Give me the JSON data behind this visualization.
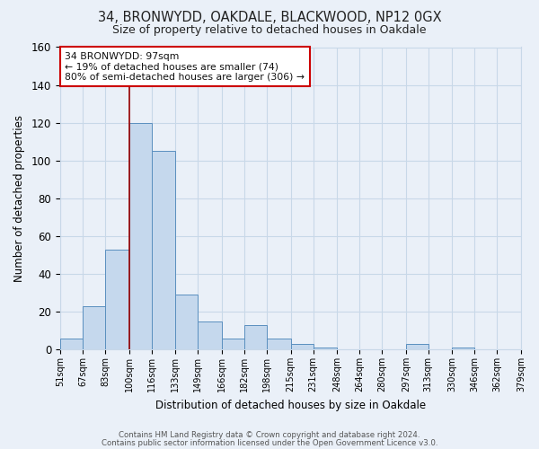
{
  "title": "34, BRONWYDD, OAKDALE, BLACKWOOD, NP12 0GX",
  "subtitle": "Size of property relative to detached houses in Oakdale",
  "xlabel": "Distribution of detached houses by size in Oakdale",
  "ylabel": "Number of detached properties",
  "bar_heights": [
    6,
    23,
    53,
    120,
    105,
    29,
    15,
    6,
    13,
    6,
    3,
    1,
    0,
    0,
    0,
    3,
    0,
    1,
    0,
    0
  ],
  "bar_color": "#c5d8ed",
  "bar_edge_color": "#5a8fbf",
  "vline_color": "#990000",
  "ylim": [
    0,
    160
  ],
  "yticks": [
    0,
    20,
    40,
    60,
    80,
    100,
    120,
    140,
    160
  ],
  "annotation_title": "34 BRONWYDD: 97sqm",
  "annotation_line1": "← 19% of detached houses are smaller (74)",
  "annotation_line2": "80% of semi-detached houses are larger (306) →",
  "annotation_box_color": "#ffffff",
  "annotation_box_edge": "#cc0000",
  "footer1": "Contains HM Land Registry data © Crown copyright and database right 2024.",
  "footer2": "Contains public sector information licensed under the Open Government Licence v3.0.",
  "grid_color": "#c8d8e8",
  "bg_color": "#eaf0f8",
  "bin_edges": [
    51,
    67,
    83,
    100,
    116,
    133,
    149,
    166,
    182,
    198,
    215,
    231,
    248,
    264,
    280,
    297,
    313,
    330,
    346,
    362,
    379
  ],
  "bin_labels": [
    "51sqm",
    "67sqm",
    "83sqm",
    "100sqm",
    "116sqm",
    "133sqm",
    "149sqm",
    "166sqm",
    "182sqm",
    "198sqm",
    "215sqm",
    "231sqm",
    "248sqm",
    "264sqm",
    "280sqm",
    "297sqm",
    "313sqm",
    "330sqm",
    "346sqm",
    "362sqm",
    "379sqm"
  ]
}
